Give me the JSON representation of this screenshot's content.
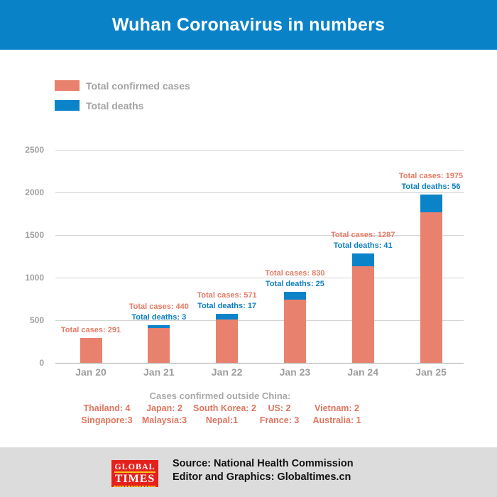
{
  "header": {
    "title": "Wuhan Coronavirus in numbers"
  },
  "colors": {
    "accent_blue": "#0a82c8",
    "cases_salmon": "#e8816e",
    "deaths_blue": "#0b83c9",
    "annotation_cases_text": "#e57b66",
    "annotation_deaths_text": "#0d7ec2",
    "gray_text": "#a3a3a3",
    "footer_bg": "#dcdcdc",
    "logo_red": "#e5211c",
    "logo_yellow": "#f6c51b"
  },
  "legend": [
    {
      "label": "Total confirmed cases",
      "color": "#e8816e"
    },
    {
      "label": "Total deaths",
      "color": "#0b83c9"
    }
  ],
  "chart_data": {
    "type": "bar",
    "stacked": true,
    "title": "Wuhan Coronavirus in numbers",
    "categories": [
      "Jan 20",
      "Jan 21",
      "Jan 22",
      "Jan 23",
      "Jan 24",
      "Jan 25"
    ],
    "series": [
      {
        "name": "Total confirmed cases",
        "color": "#e8816e",
        "values": [
          291,
          440,
          571,
          830,
          1287,
          1975
        ]
      },
      {
        "name": "Total deaths",
        "color": "#0b83c9",
        "values": [
          null,
          3,
          17,
          25,
          41,
          56
        ]
      }
    ],
    "annotations": [
      {
        "cases": "Total cases: 291",
        "deaths": null
      },
      {
        "cases": "Total cases: 440",
        "deaths": "Total deaths: 3"
      },
      {
        "cases": "Total cases: 571",
        "deaths": "Total deaths: 17"
      },
      {
        "cases": "Total cases: 830",
        "deaths": "Total deaths: 25"
      },
      {
        "cases": "Total cases: 1287",
        "deaths": "Total deaths: 41"
      },
      {
        "cases": "Total cases: 1975",
        "deaths": "Total deaths: 56"
      }
    ],
    "xlabel": "",
    "ylabel": "",
    "yticks": [
      0,
      500,
      1000,
      1500,
      2000,
      2500
    ],
    "ylim": [
      0,
      2500
    ],
    "grid": true,
    "legend_position": "top-left"
  },
  "outside": {
    "title": "Cases confirmed outside China:",
    "rows": [
      [
        "Thailand: 4",
        "Japan: 2",
        "South Korea: 2",
        "US: 2",
        "Vietnam: 2"
      ],
      [
        "Singapore:3",
        "Malaysia:3",
        "Nepal:1",
        "France: 3",
        "Australia: 1"
      ]
    ]
  },
  "footer": {
    "logo_top": "GLOBAL",
    "logo_bottom": "TIMES",
    "source": "Source: National Health Commission",
    "editor": "Editor and Graphics: Globaltimes.cn"
  }
}
